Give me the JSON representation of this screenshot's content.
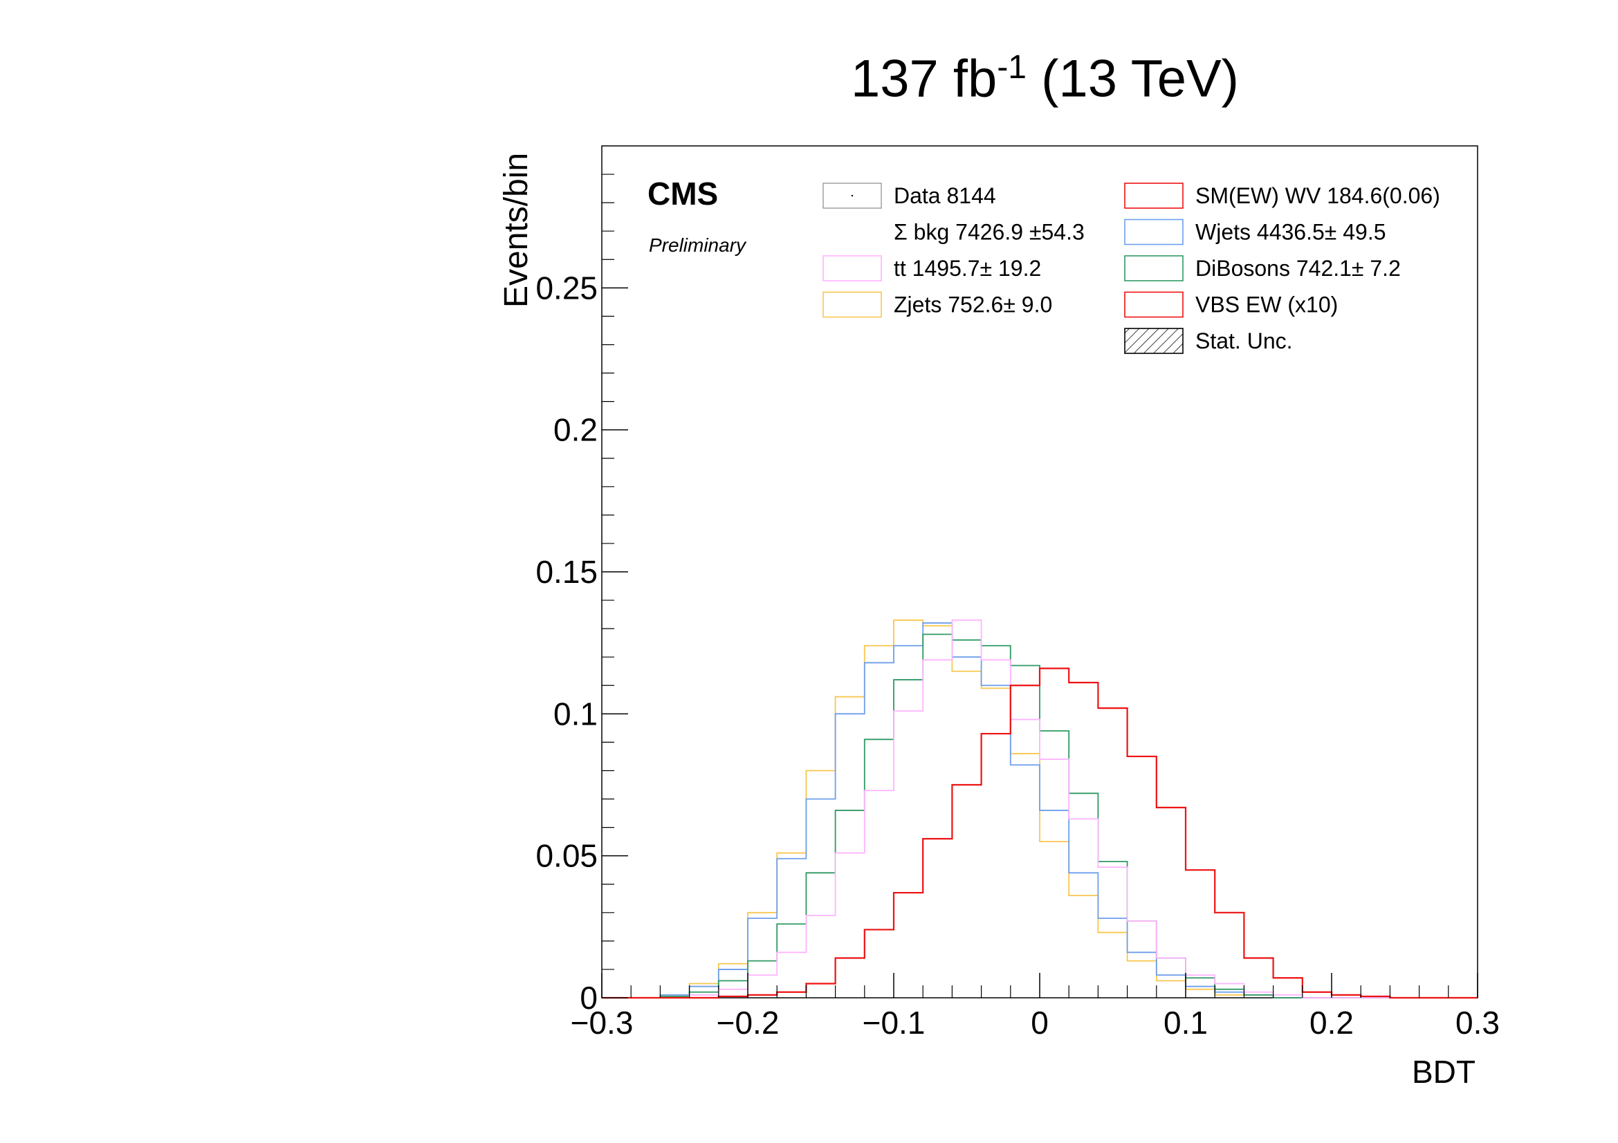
{
  "header": {
    "lumi_value": "137 fb",
    "lumi_exp": "-1",
    "energy": " (13 TeV)"
  },
  "labels": {
    "cms": "CMS",
    "preliminary": "Preliminary"
  },
  "colors": {
    "signal": "#ee1111",
    "wjets": "#6d9eeb",
    "dibosons": "#2e9963",
    "zjets": "#f9c64e",
    "tt": "#ffb3ff",
    "data": "#888888",
    "frame": "#000000"
  },
  "legend": [
    {
      "key": "data",
      "label": "Data   8144",
      "box": "data"
    },
    {
      "key": "sumbkg",
      "label": "Σ bkg 7426.9 ±54.3",
      "box": "none"
    },
    {
      "key": "tt",
      "label": " tt  1495.7± 19.2",
      "box": "tt"
    },
    {
      "key": "zjets",
      "label": "Zjets   752.6±  9.0",
      "box": "zjets"
    },
    {
      "key": "smew",
      "label": "SM(EW) WV  184.6(0.06)",
      "box": "signal"
    },
    {
      "key": "wjets",
      "label": "Wjets  4436.5± 49.5",
      "box": "wjets"
    },
    {
      "key": "dibosons",
      "label": "DiBosons   742.1±  7.2",
      "box": "dibosons"
    },
    {
      "key": "vbs",
      "label": "VBS EW (x10)",
      "box": "signal"
    },
    {
      "key": "stat",
      "label": "Stat. Unc.",
      "box": "hatch"
    }
  ],
  "chart_data": {
    "type": "line",
    "xlabel": "BDT",
    "ylabel": "Events/bin",
    "xlim": [
      -0.3,
      0.3
    ],
    "ylim": [
      0,
      0.3
    ],
    "x_ticks": [
      -0.3,
      -0.2,
      -0.1,
      0,
      0.1,
      0.2,
      0.3
    ],
    "x_tick_labels": [
      "−0.3",
      "−0.2",
      "−0.1",
      "0",
      "0.1",
      "0.2",
      "0.3"
    ],
    "y_ticks": [
      0,
      0.05,
      0.1,
      0.15,
      0.2,
      0.25
    ],
    "y_tick_labels": [
      "0",
      "0.05",
      "0.1",
      "0.15",
      "0.2",
      "0.25"
    ],
    "bin_edges": [
      -0.3,
      -0.28,
      -0.26,
      -0.24,
      -0.22,
      -0.2,
      -0.18,
      -0.16,
      -0.14,
      -0.12,
      -0.1,
      -0.08,
      -0.06,
      -0.04,
      -0.02,
      0,
      0.02,
      0.04,
      0.06,
      0.08,
      0.1,
      0.12,
      0.14,
      0.16,
      0.18,
      0.2,
      0.22,
      0.24,
      0.26,
      0.28,
      0.3
    ],
    "series": [
      {
        "name": "Zjets",
        "color_key": "zjets",
        "values": [
          0,
          0,
          0.001,
          0.005,
          0.012,
          0.03,
          0.051,
          0.08,
          0.106,
          0.124,
          0.133,
          0.131,
          0.115,
          0.109,
          0.086,
          0.055,
          0.036,
          0.023,
          0.013,
          0.006,
          0.003,
          0.001,
          0.001,
          0,
          0,
          0,
          0,
          0,
          0,
          0
        ]
      },
      {
        "name": "Wjets",
        "color_key": "wjets",
        "values": [
          0,
          0,
          0.001,
          0.004,
          0.01,
          0.028,
          0.049,
          0.07,
          0.1,
          0.118,
          0.124,
          0.132,
          0.12,
          0.11,
          0.082,
          0.066,
          0.044,
          0.028,
          0.016,
          0.008,
          0.004,
          0.002,
          0.001,
          0,
          0,
          0,
          0,
          0,
          0,
          0
        ]
      },
      {
        "name": "DiBosons",
        "color_key": "dibosons",
        "values": [
          0,
          0,
          0.0005,
          0.002,
          0.006,
          0.013,
          0.026,
          0.044,
          0.066,
          0.091,
          0.112,
          0.128,
          0.126,
          0.124,
          0.117,
          0.094,
          0.072,
          0.048,
          0.027,
          0.014,
          0.007,
          0.003,
          0.001,
          0,
          0,
          0,
          0,
          0,
          0,
          0
        ]
      },
      {
        "name": "tt",
        "color_key": "tt",
        "values": [
          0,
          0,
          0,
          0.001,
          0.003,
          0.008,
          0.016,
          0.029,
          0.051,
          0.073,
          0.101,
          0.119,
          0.133,
          0.119,
          0.098,
          0.084,
          0.063,
          0.046,
          0.027,
          0.014,
          0.008,
          0.005,
          0.002,
          0.001,
          0,
          0,
          0,
          0,
          0,
          0
        ]
      },
      {
        "name": "VBS EW (x10)",
        "color_key": "signal",
        "values": [
          0,
          0,
          0,
          0,
          0.0005,
          0.001,
          0.002,
          0.005,
          0.014,
          0.024,
          0.037,
          0.056,
          0.075,
          0.093,
          0.11,
          0.116,
          0.111,
          0.102,
          0.085,
          0.067,
          0.045,
          0.03,
          0.014,
          0.007,
          0.002,
          0.001,
          0.0005,
          0,
          0,
          0
        ]
      }
    ]
  }
}
